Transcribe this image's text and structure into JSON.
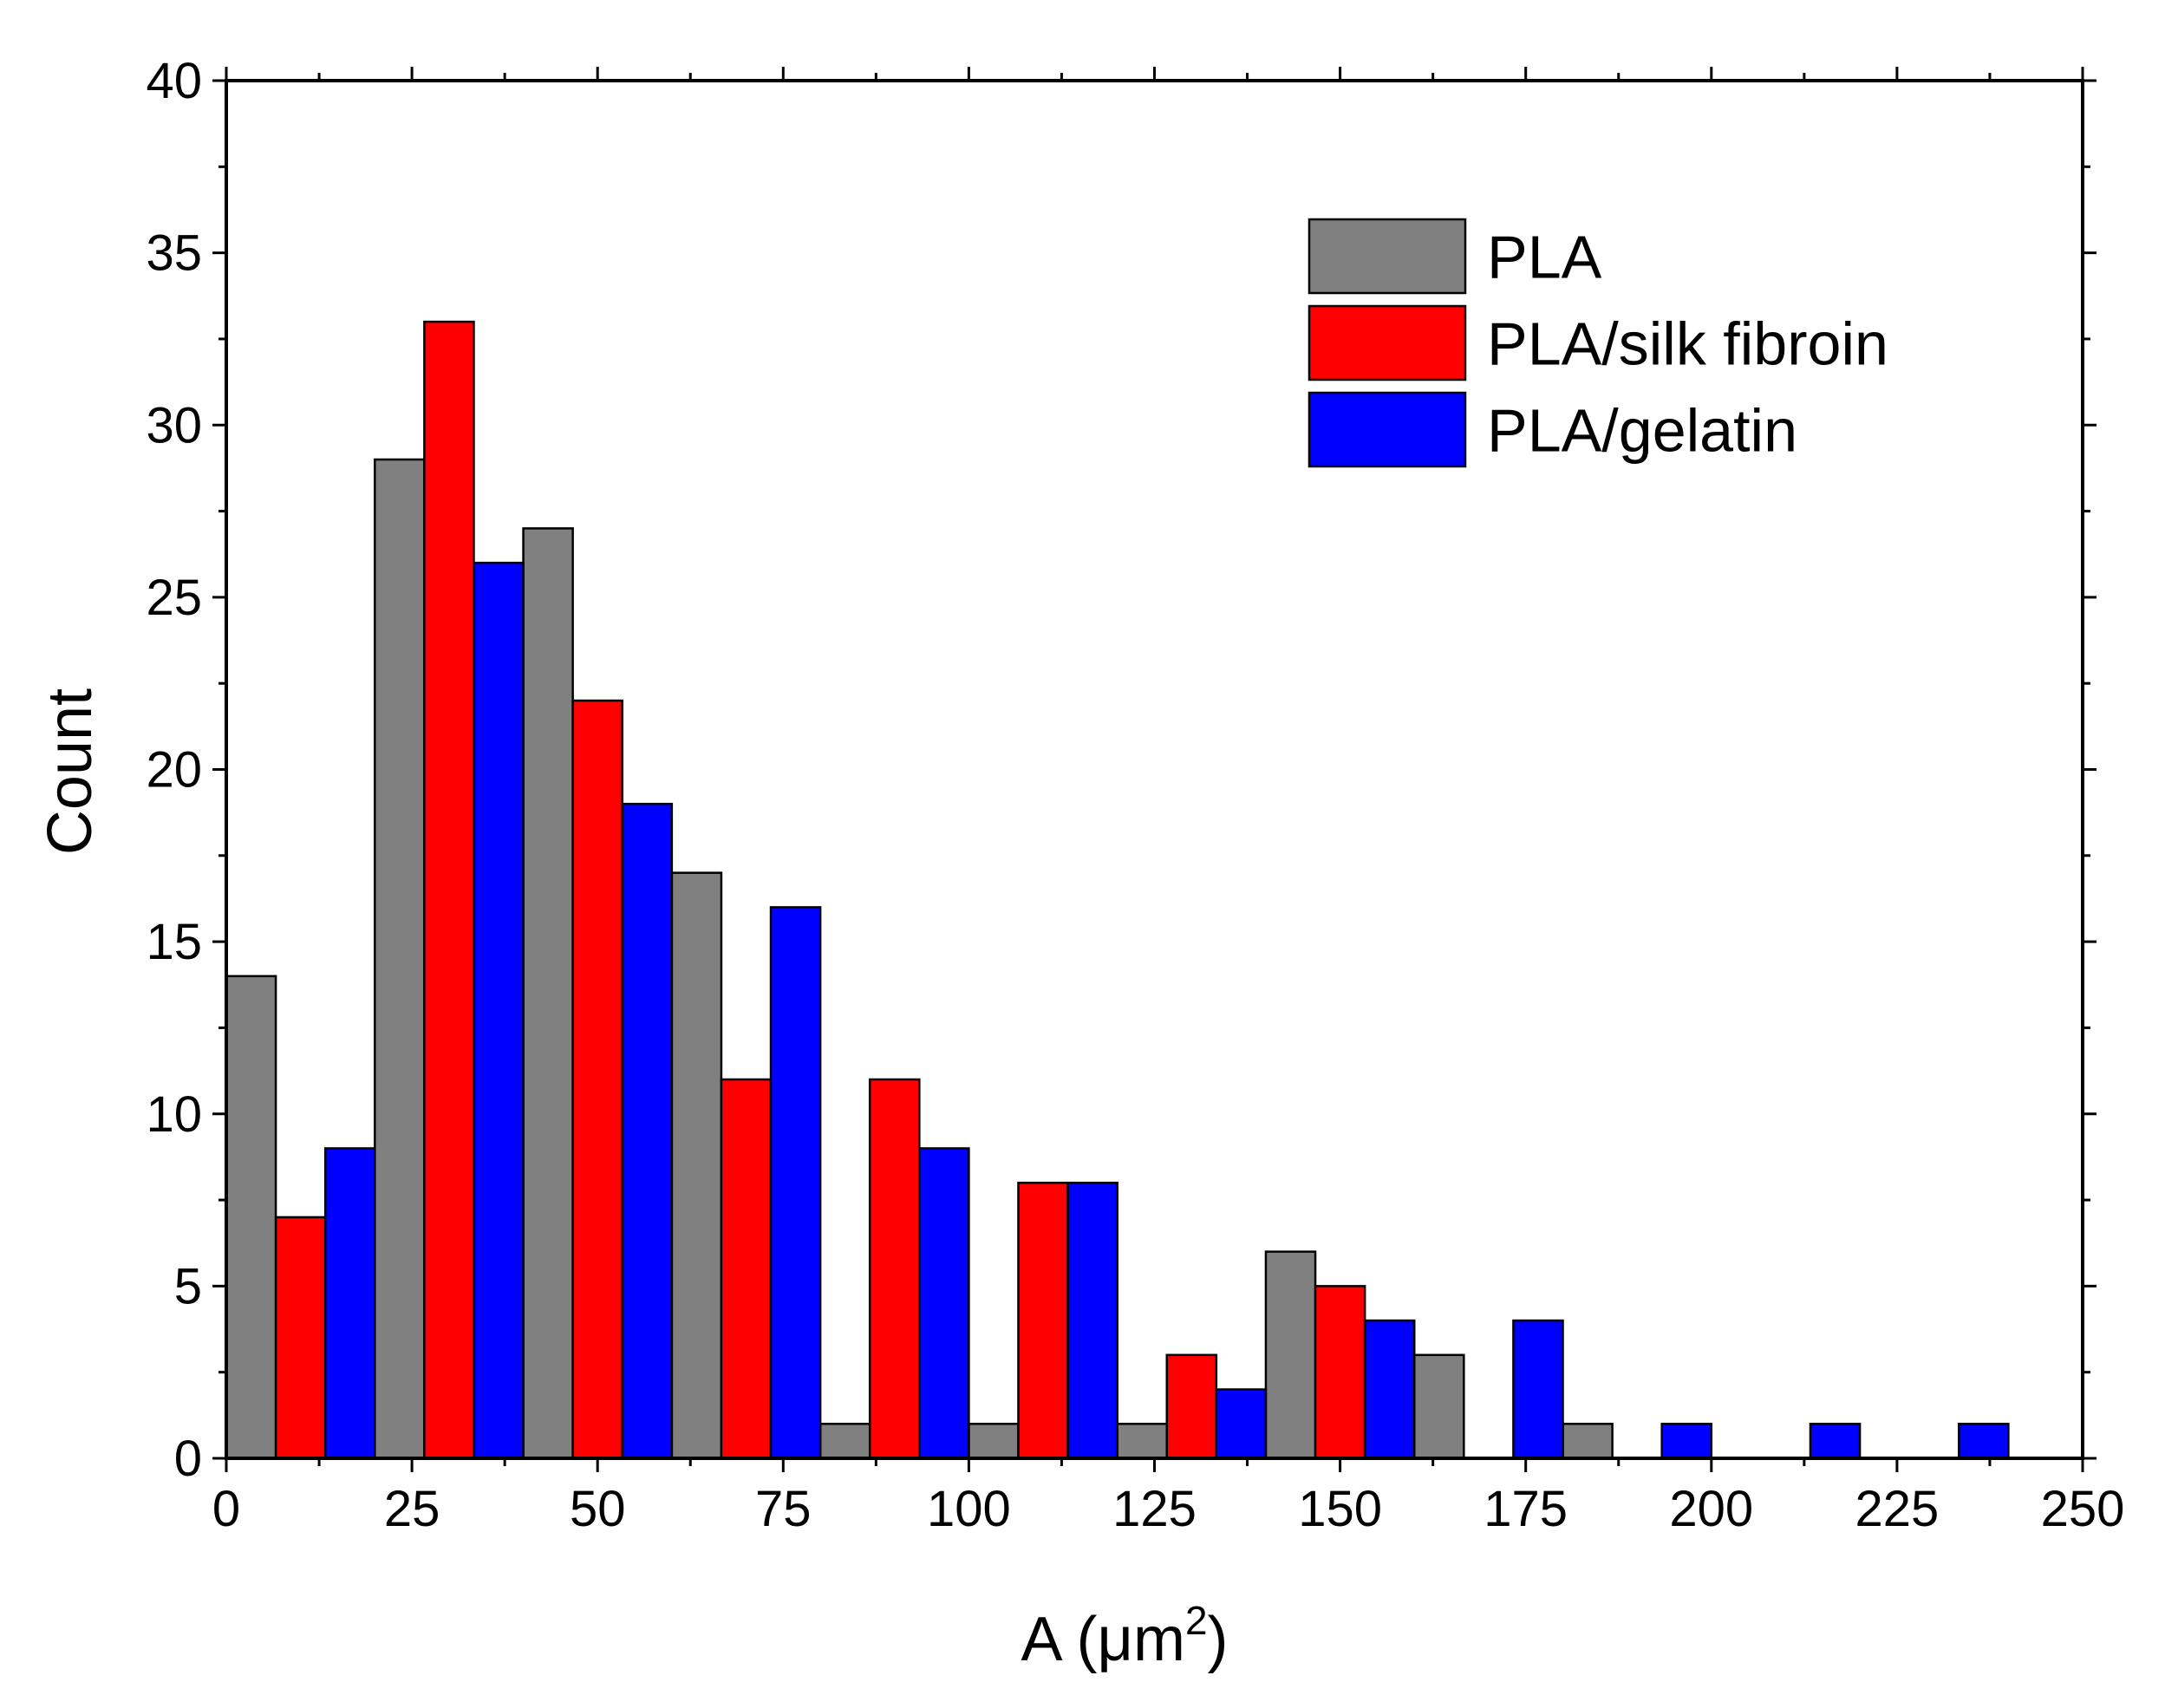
{
  "chart_data": {
    "type": "bar",
    "title": "",
    "xlabel": "A (",
    "xlabel_unit": "μm",
    "xlabel_sup": "2",
    "xlabel_close": ")",
    "ylabel": "Count",
    "xlim": [
      0,
      250
    ],
    "ylim": [
      0,
      40
    ],
    "x_ticks": [
      0,
      25,
      50,
      75,
      100,
      125,
      150,
      175,
      200,
      225,
      250
    ],
    "y_ticks": [
      0,
      5,
      10,
      15,
      20,
      25,
      30,
      35,
      40
    ],
    "bin_width": 20,
    "legend_position": "top-right",
    "series": [
      {
        "name": "PLA",
        "color": "#808080",
        "bins": [
          {
            "start": 0,
            "count": 14
          },
          {
            "start": 20,
            "count": 29
          },
          {
            "start": 40,
            "count": 27
          },
          {
            "start": 60,
            "count": 17
          },
          {
            "start": 80,
            "count": 1
          },
          {
            "start": 100,
            "count": 1
          },
          {
            "start": 120,
            "count": 1
          },
          {
            "start": 140,
            "count": 6
          },
          {
            "start": 160,
            "count": 3
          },
          {
            "start": 180,
            "count": 1
          }
        ]
      },
      {
        "name": "PLA/silk fibroin",
        "color": "#ff0000",
        "bins": [
          {
            "start": 0,
            "count": 7
          },
          {
            "start": 20,
            "count": 33
          },
          {
            "start": 40,
            "count": 22
          },
          {
            "start": 60,
            "count": 11
          },
          {
            "start": 80,
            "count": 11
          },
          {
            "start": 100,
            "count": 8
          },
          {
            "start": 120,
            "count": 3
          },
          {
            "start": 140,
            "count": 5
          }
        ]
      },
      {
        "name": "PLA/gelatin",
        "color": "#0000ff",
        "bins": [
          {
            "start": 0,
            "count": 9
          },
          {
            "start": 20,
            "count": 26
          },
          {
            "start": 40,
            "count": 19
          },
          {
            "start": 60,
            "count": 16
          },
          {
            "start": 80,
            "count": 9
          },
          {
            "start": 100,
            "count": 8
          },
          {
            "start": 120,
            "count": 2
          },
          {
            "start": 140,
            "count": 4
          },
          {
            "start": 160,
            "count": 4
          },
          {
            "start": 180,
            "count": 1
          },
          {
            "start": 200,
            "count": 1
          },
          {
            "start": 220,
            "count": 1
          }
        ]
      }
    ]
  }
}
